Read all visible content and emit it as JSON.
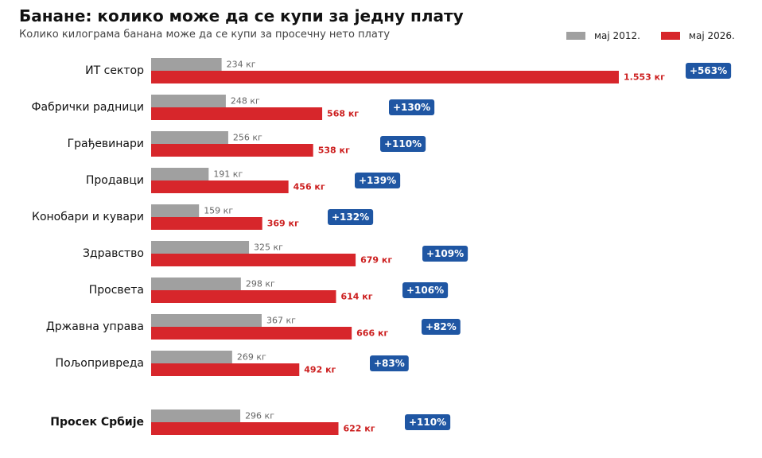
{
  "chart_data": {
    "type": "bar",
    "orientation": "horizontal",
    "title": "Банане: колико може да се купи за једну плату",
    "subtitle": "Колико килограма банана може да се купи за просечну нето плату",
    "legend_position": "top-right",
    "grid": false,
    "xlim": [
      0,
      1553
    ],
    "categories": [
      "ИТ сектор",
      "Фабрички радници",
      "Грађевинари",
      "Продавци",
      "Конобари и кувари",
      "Здравство",
      "Просвета",
      "Државна управа",
      "Пољопривреда",
      "Просек Србије"
    ],
    "series": [
      {
        "name": "мај 2012.",
        "color": "#a0a0a0",
        "values": [
          234,
          248,
          256,
          191,
          159,
          325,
          298,
          367,
          269,
          296
        ],
        "labels": [
          "234 кг",
          "248 кг",
          "256 кг",
          "191 кг",
          "159 кг",
          "325 кг",
          "298 кг",
          "367 кг",
          "269 кг",
          "296 кг"
        ]
      },
      {
        "name": "мај 2026.",
        "color": "#d7262b",
        "values": [
          1553,
          568,
          538,
          456,
          369,
          679,
          614,
          666,
          492,
          622
        ],
        "labels": [
          "1.553 кг",
          "568 кг",
          "538 кг",
          "456 кг",
          "369 кг",
          "679 кг",
          "614 кг",
          "666 кг",
          "492 кг",
          "622 кг"
        ]
      }
    ],
    "change_labels": [
      "+563%",
      "+130%",
      "+110%",
      "+139%",
      "+132%",
      "+109%",
      "+106%",
      "+82%",
      "+83%",
      "+110%"
    ],
    "highlight_category": "Просек Србије",
    "badge_color": "#1f56a3"
  }
}
